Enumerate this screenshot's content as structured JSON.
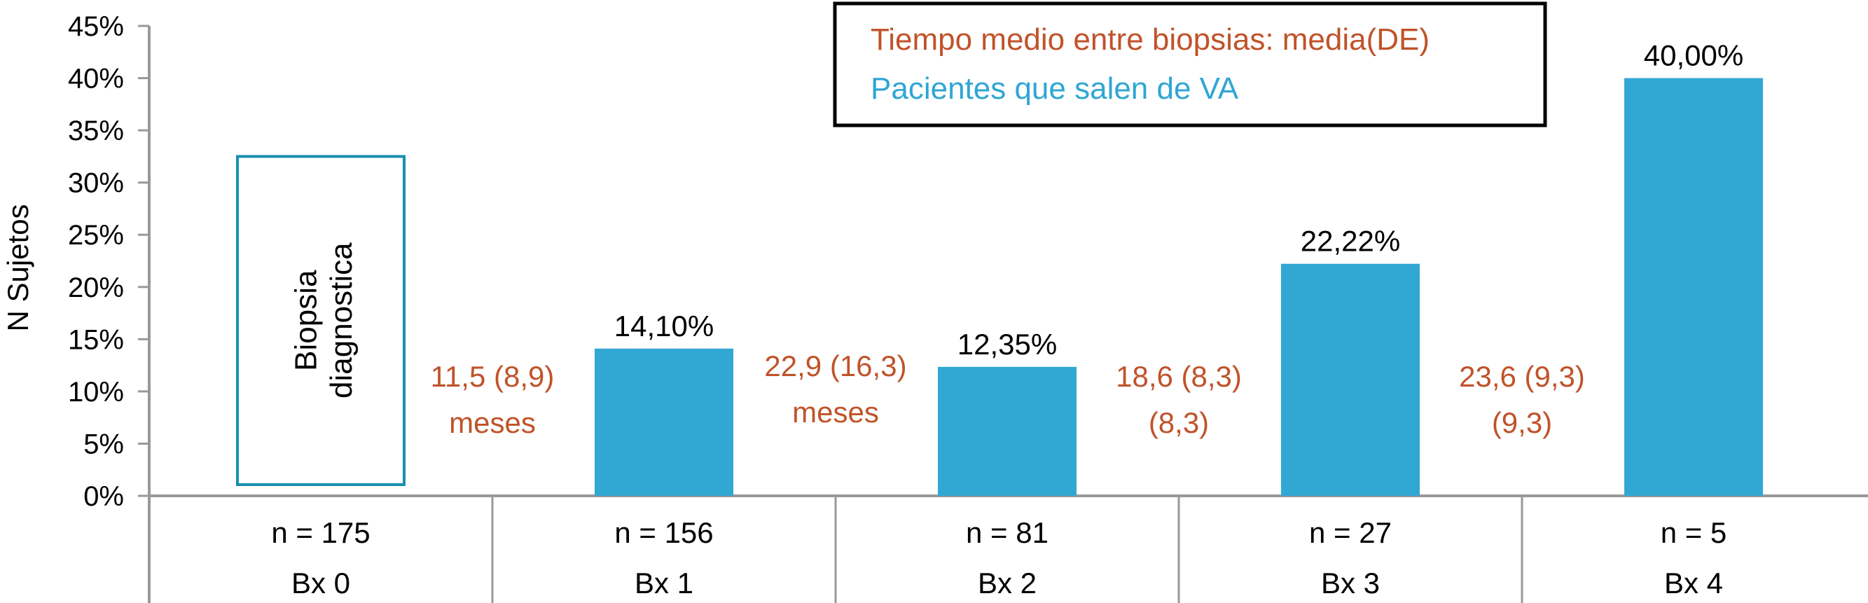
{
  "chart_data": {
    "type": "bar",
    "ylabel": "N Sujetos",
    "ylim": [
      0,
      45
    ],
    "y_ticks": [
      "0%",
      "5%",
      "10%",
      "15%",
      "20%",
      "25%",
      "30%",
      "35%",
      "40%",
      "45%"
    ],
    "y_tick_values": [
      0,
      5,
      10,
      15,
      20,
      25,
      30,
      35,
      40,
      45
    ],
    "grid": false,
    "categories": [
      "Bx 0",
      "Bx 1",
      "Bx 2",
      "Bx 3",
      "Bx 4"
    ],
    "counts": [
      "n = 175",
      "n = 156",
      "n = 81",
      "n = 27",
      "n = 5"
    ],
    "series": [
      {
        "name": "Pacientes que salen de VA",
        "values": [
          null,
          14.1,
          12.35,
          22.22,
          40.0
        ],
        "labels": [
          "",
          "14,10%",
          "12,35%",
          "22,22%",
          "40,00%"
        ]
      }
    ],
    "baseline_box": {
      "category": "Bx 0",
      "value": 32.5,
      "text": [
        "Biopsia",
        "diagnostica"
      ]
    },
    "intervals": [
      {
        "between": [
          "Bx 0",
          "Bx 1"
        ],
        "lines": [
          "11,5 (8,9)",
          "meses"
        ]
      },
      {
        "between": [
          "Bx 1",
          "Bx 2"
        ],
        "lines": [
          "22,9 (16,3)",
          "meses"
        ]
      },
      {
        "between": [
          "Bx 2",
          "Bx 3"
        ],
        "lines": [
          "18,6 (8,3)",
          "(8,3)"
        ]
      },
      {
        "between": [
          "Bx 3",
          "Bx 4"
        ],
        "lines": [
          "23,6 (9,3)",
          "(9,3)"
        ]
      }
    ],
    "legend": {
      "position": "top-center",
      "entries": [
        {
          "text": "Tiempo medio entre biopsias: media(DE)",
          "color": "#c0532a"
        },
        {
          "text": "Pacientes que salen de VA",
          "color": "#2fa6d4"
        }
      ]
    },
    "colors": {
      "bar": "#31a7d4",
      "box_outline": "#1a8fb0",
      "interval_text": "#c0532a",
      "legend_series_text": "#2fa6d4",
      "axis": "#999999"
    }
  }
}
